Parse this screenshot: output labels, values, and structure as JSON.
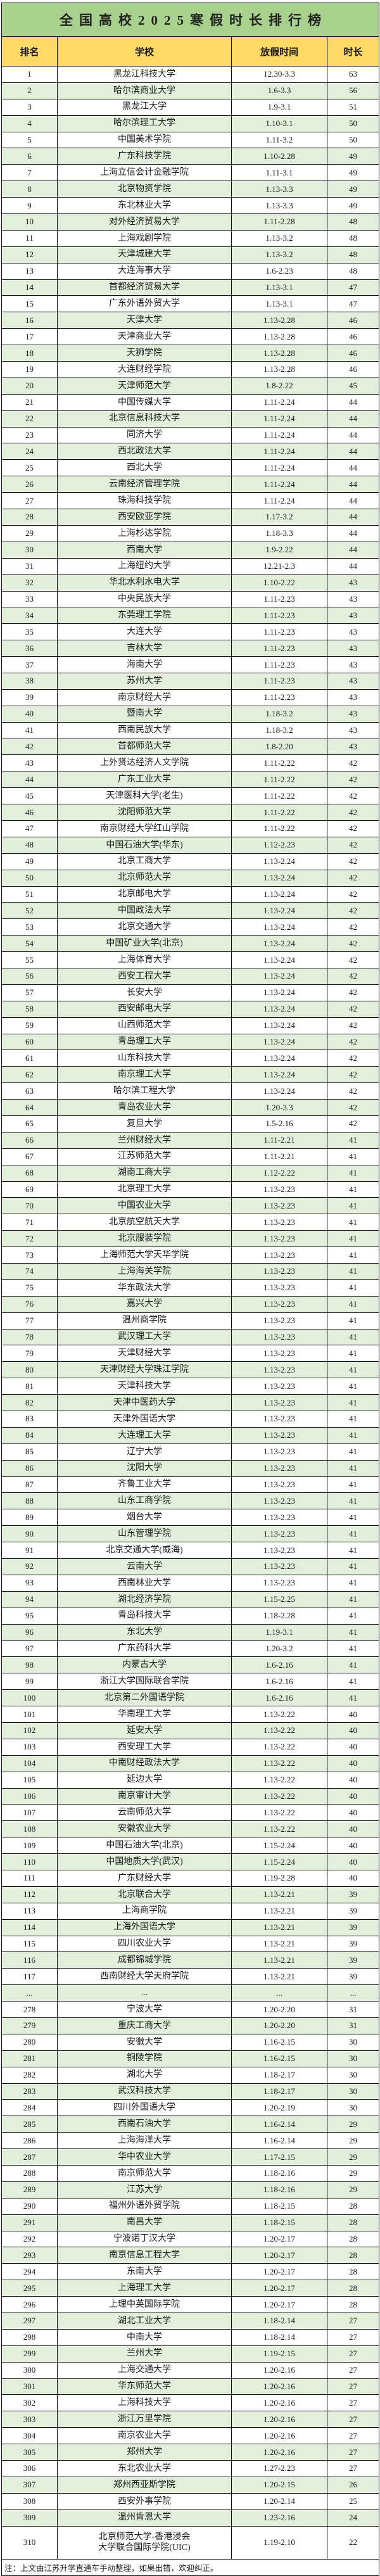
{
  "title": "全国高校2025寒假时长排行榜",
  "columns": [
    "排名",
    "学校",
    "放假时间",
    "时长"
  ],
  "footer_note": "注：上文由江苏升学直通车手动整理，如果出错，欢迎纠正。",
  "colors": {
    "title_bg": "#a9d18e",
    "header_bg": "#ffd966",
    "alt_row_bg": "#e2efda",
    "border": "#101010"
  },
  "rows": [
    [
      "1",
      "黑龙江科技大学",
      "12.30-3.3",
      "63"
    ],
    [
      "2",
      "哈尔滨商业大学",
      "1.6-3.3",
      "56"
    ],
    [
      "3",
      "黑龙江大学",
      "1.9-3.1",
      "51"
    ],
    [
      "4",
      "哈尔滨理工大学",
      "1.10-3.1",
      "50"
    ],
    [
      "5",
      "中国美术学院",
      "1.11-3.2",
      "50"
    ],
    [
      "6",
      "广东科技学院",
      "1.10-2.28",
      "49"
    ],
    [
      "7",
      "上海立信会计金融学院",
      "1.11-3.1",
      "49"
    ],
    [
      "8",
      "北京物资学院",
      "1.13-3.3",
      "49"
    ],
    [
      "9",
      "东北林业大学",
      "1.13-3.3",
      "49"
    ],
    [
      "10",
      "对外经济贸易大学",
      "1.11-2.28",
      "48"
    ],
    [
      "11",
      "上海戏剧学院",
      "1.13-3.2",
      "48"
    ],
    [
      "12",
      "天津城建大学",
      "1.13-3.2",
      "48"
    ],
    [
      "13",
      "大连海事大学",
      "1.6-2.23",
      "48"
    ],
    [
      "14",
      "首都经济贸易大学",
      "1.13-3.1",
      "47"
    ],
    [
      "15",
      "广东外语外贸大学",
      "1.13-3.1",
      "47"
    ],
    [
      "16",
      "天津大学",
      "1.13-2.28",
      "46"
    ],
    [
      "17",
      "天津商业大学",
      "1.13-2.28",
      "46"
    ],
    [
      "18",
      "天狮学院",
      "1.13-2.28",
      "46"
    ],
    [
      "19",
      "大连财经学院",
      "1.13-2.28",
      "46"
    ],
    [
      "20",
      "天津师范大学",
      "1.8-2.22",
      "45"
    ],
    [
      "21",
      "中国传媒大学",
      "1.11-2.24",
      "44"
    ],
    [
      "22",
      "北京信息科技大学",
      "1.11-2.24",
      "44"
    ],
    [
      "23",
      "同济大学",
      "1.11-2.24",
      "44"
    ],
    [
      "24",
      "西北政法大学",
      "1.11-2.24",
      "44"
    ],
    [
      "25",
      "西北大学",
      "1.11-2.24",
      "44"
    ],
    [
      "26",
      "云南经济管理学院",
      "1.11-2.24",
      "44"
    ],
    [
      "27",
      "珠海科技学院",
      "1.11-2.24",
      "44"
    ],
    [
      "28",
      "西安欧亚学院",
      "1.17-3.2",
      "44"
    ],
    [
      "29",
      "上海杉达学院",
      "1.18-3.3",
      "44"
    ],
    [
      "30",
      "西南大学",
      "1.9-2.22",
      "44"
    ],
    [
      "31",
      "上海纽约大学",
      "12.21-2.3",
      "44"
    ],
    [
      "32",
      "华北水利水电大学",
      "1.10-2.22",
      "43"
    ],
    [
      "33",
      "中央民族大学",
      "1.11-2.23",
      "43"
    ],
    [
      "34",
      "东莞理工学院",
      "1.11-2.23",
      "43"
    ],
    [
      "35",
      "大连大学",
      "1.11-2.23",
      "43"
    ],
    [
      "36",
      "吉林大学",
      "1.11-2.23",
      "43"
    ],
    [
      "37",
      "海南大学",
      "1.11-2.23",
      "43"
    ],
    [
      "38",
      "苏州大学",
      "1.11-2.23",
      "43"
    ],
    [
      "39",
      "南京财经大学",
      "1.11-2.23",
      "43"
    ],
    [
      "40",
      "暨南大学",
      "1.18-3.2",
      "43"
    ],
    [
      "41",
      "西南民族大学",
      "1.18-3.2",
      "43"
    ],
    [
      "42",
      "首都师范大学",
      "1.8-2.20",
      "43"
    ],
    [
      "43",
      "上外贤达经济人文学院",
      "1.11-2.22",
      "42"
    ],
    [
      "44",
      "广东工业大学",
      "1.11-2.22",
      "42"
    ],
    [
      "45",
      "天津医科大学(老生)",
      "1.11-2.22",
      "42"
    ],
    [
      "46",
      "沈阳师范大学",
      "1.11-2.22",
      "42"
    ],
    [
      "47",
      "南京财经大学红山学院",
      "1.11-2.22",
      "42"
    ],
    [
      "48",
      "中国石油大学(华东)",
      "1.12-2.23",
      "42"
    ],
    [
      "49",
      "北京工商大学",
      "1.13-2.24",
      "42"
    ],
    [
      "50",
      "北京师范大学",
      "1.13-2.24",
      "42"
    ],
    [
      "51",
      "北京邮电大学",
      "1.13-2.24",
      "42"
    ],
    [
      "52",
      "中国政法大学",
      "1.13-2.24",
      "42"
    ],
    [
      "53",
      "北京交通大学",
      "1.13-2.24",
      "42"
    ],
    [
      "54",
      "中国矿业大学(北京)",
      "1.13-2.24",
      "42"
    ],
    [
      "55",
      "上海体育大学",
      "1.13-2.24",
      "42"
    ],
    [
      "56",
      "西安工程大学",
      "1.13-2.24",
      "42"
    ],
    [
      "57",
      "长安大学",
      "1.13-2.24",
      "42"
    ],
    [
      "58",
      "西安邮电大学",
      "1.13-2.24",
      "42"
    ],
    [
      "59",
      "山西师范大学",
      "1.13-2.24",
      "42"
    ],
    [
      "60",
      "青岛理工大学",
      "1.13-2.24",
      "42"
    ],
    [
      "61",
      "山东科技大学",
      "1.13-2.24",
      "42"
    ],
    [
      "62",
      "南京理工大学",
      "1.13-2.24",
      "42"
    ],
    [
      "63",
      "哈尔滨工程大学",
      "1.13-2.24",
      "42"
    ],
    [
      "64",
      "青岛农业大学",
      "1.20-3.3",
      "42"
    ],
    [
      "65",
      "复旦大学",
      "1.5-2.16",
      "42"
    ],
    [
      "66",
      "兰州财经大学",
      "1.11-2.21",
      "41"
    ],
    [
      "67",
      "江苏师范大学",
      "1.11-2.21",
      "41"
    ],
    [
      "68",
      "湖南工商大学",
      "1.12-2.22",
      "41"
    ],
    [
      "69",
      "北京理工大学",
      "1.13-2.23",
      "41"
    ],
    [
      "70",
      "中国农业大学",
      "1.13-2.23",
      "41"
    ],
    [
      "71",
      "北京航空航天大学",
      "1.13-2.23",
      "41"
    ],
    [
      "72",
      "北京服装学院",
      "1.13-2.23",
      "41"
    ],
    [
      "73",
      "上海师范大学天华学院",
      "1.13-2.23",
      "41"
    ],
    [
      "74",
      "上海海关学院",
      "1.13-2.23",
      "41"
    ],
    [
      "75",
      "华东政法大学",
      "1.13-2.23",
      "41"
    ],
    [
      "76",
      "嘉兴大学",
      "1.13-2.23",
      "41"
    ],
    [
      "77",
      "温州商学院",
      "1.13-2.23",
      "41"
    ],
    [
      "78",
      "武汉理工大学",
      "1.13-2.23",
      "41"
    ],
    [
      "79",
      "天津财经大学",
      "1.13-2.23",
      "41"
    ],
    [
      "80",
      "天津财经大学珠江学院",
      "1.13-2.23",
      "41"
    ],
    [
      "81",
      "天津科技大学",
      "1.13-2.23",
      "41"
    ],
    [
      "82",
      "天津中医药大学",
      "1.13-2.23",
      "41"
    ],
    [
      "83",
      "天津外国语大学",
      "1.13-2.23",
      "41"
    ],
    [
      "84",
      "大连理工大学",
      "1.13-2.23",
      "41"
    ],
    [
      "85",
      "辽宁大学",
      "1.13-2.23",
      "41"
    ],
    [
      "86",
      "沈阳大学",
      "1.13-2.23",
      "41"
    ],
    [
      "87",
      "齐鲁工业大学",
      "1.13-2.23",
      "41"
    ],
    [
      "88",
      "山东工商学院",
      "1.13-2.23",
      "41"
    ],
    [
      "89",
      "烟台大学",
      "1.13-2.23",
      "41"
    ],
    [
      "90",
      "山东管理学院",
      "1.13-2.23",
      "41"
    ],
    [
      "91",
      "北京交通大学(威海)",
      "1.13-2.23",
      "41"
    ],
    [
      "92",
      "云南大学",
      "1.13-2.23",
      "41"
    ],
    [
      "93",
      "西南林业大学",
      "1.13-2.23",
      "41"
    ],
    [
      "94",
      "湖北经济学院",
      "1.15-2.25",
      "41"
    ],
    [
      "95",
      "青岛科技大学",
      "1.18-2.28",
      "41"
    ],
    [
      "96",
      "东北大学",
      "1.19-3.1",
      "41"
    ],
    [
      "97",
      "广东药科大学",
      "1.20-3.2",
      "41"
    ],
    [
      "98",
      "内蒙古大学",
      "1.6-2.16",
      "41"
    ],
    [
      "99",
      "浙江大学国际联合学院",
      "1.6-2.16",
      "41"
    ],
    [
      "100",
      "北京第二外国语学院",
      "1.6-2.16",
      "41"
    ],
    [
      "101",
      "华南理工大学",
      "1.13-2.22",
      "40"
    ],
    [
      "102",
      "延安大学",
      "1.13-2.22",
      "40"
    ],
    [
      "103",
      "西安理工大学",
      "1.13-2.22",
      "40"
    ],
    [
      "104",
      "中南财经政法大学",
      "1.13-2.22",
      "40"
    ],
    [
      "105",
      "延边大学",
      "1.13-2.22",
      "40"
    ],
    [
      "106",
      "南京审计大学",
      "1.13-2.22",
      "40"
    ],
    [
      "107",
      "云南师范大学",
      "1.13-2.22",
      "40"
    ],
    [
      "108",
      "安徽农业大学",
      "1.13-2.22",
      "40"
    ],
    [
      "109",
      "中国石油大学(北京)",
      "1.15-2.24",
      "40"
    ],
    [
      "110",
      "中国地质大学(武汉)",
      "1.15-2.24",
      "40"
    ],
    [
      "111",
      "广东财经大学",
      "1.19-2.28",
      "40"
    ],
    [
      "112",
      "北京联合大学",
      "1.13-2.21",
      "39"
    ],
    [
      "113",
      "上海商学院",
      "1.13-2.21",
      "39"
    ],
    [
      "114",
      "上海外国语大学",
      "1.13-2.21",
      "39"
    ],
    [
      "115",
      "四川农业大学",
      "1.13-2.21",
      "39"
    ],
    [
      "116",
      "成都锦城学院",
      "1.13-2.21",
      "39"
    ],
    [
      "117",
      "西南财经大学天府学院",
      "1.13-2.21",
      "39"
    ],
    [
      "...",
      "...",
      "...",
      "..."
    ],
    [
      "278",
      "宁波大学",
      "1.20-2.20",
      "31"
    ],
    [
      "279",
      "重庆工商大学",
      "1.20-2.20",
      "31"
    ],
    [
      "280",
      "安徽大学",
      "1.16-2.15",
      "30"
    ],
    [
      "281",
      "铜陵学院",
      "1.16-2.15",
      "30"
    ],
    [
      "282",
      "湖北大学",
      "1.18-2.17",
      "30"
    ],
    [
      "283",
      "武汉科技大学",
      "1.18-2.17",
      "30"
    ],
    [
      "284",
      "四川外国语大学",
      "1.20-2.19",
      "30"
    ],
    [
      "285",
      "西南石油大学",
      "1.16-2.14",
      "29"
    ],
    [
      "286",
      "上海海洋大学",
      "1.16-2.14",
      "29"
    ],
    [
      "287",
      "华中农业大学",
      "1.17-2.15",
      "29"
    ],
    [
      "288",
      "南京师范大学",
      "1.18-2.16",
      "29"
    ],
    [
      "289",
      "江苏大学",
      "1.18-2.16",
      "29"
    ],
    [
      "290",
      "福州外语外贸学院",
      "1.18-2.15",
      "28"
    ],
    [
      "291",
      "南昌大学",
      "1.18-2.15",
      "28"
    ],
    [
      "292",
      "宁波诺丁汉大学",
      "1.20-2.17",
      "28"
    ],
    [
      "293",
      "南京信息工程大学",
      "1.20-2.17",
      "28"
    ],
    [
      "294",
      "东南大学",
      "1.20-2.17",
      "28"
    ],
    [
      "295",
      "上海理工大学",
      "1.20-2.17",
      "28"
    ],
    [
      "296",
      "上理中英国际学院",
      "1.20-2.17",
      "28"
    ],
    [
      "297",
      "湖北工业大学",
      "1.18-2.14",
      "27"
    ],
    [
      "298",
      "中南大学",
      "1.18-2.14",
      "27"
    ],
    [
      "299",
      "兰州大学",
      "1.19-2.15",
      "27"
    ],
    [
      "300",
      "上海交通大学",
      "1.20-2.16",
      "27"
    ],
    [
      "301",
      "华东师范大学",
      "1.20-2.16",
      "27"
    ],
    [
      "302",
      "上海科技大学",
      "1.20-2.16",
      "27"
    ],
    [
      "303",
      "浙江万里学院",
      "1.20-2.16",
      "27"
    ],
    [
      "304",
      "南京农业大学",
      "1.20-2.16",
      "27"
    ],
    [
      "305",
      "郑州大学",
      "1.20-2.16",
      "27"
    ],
    [
      "306",
      "东北农业大学",
      "1.27-2.23",
      "27"
    ],
    [
      "307",
      "郑州西亚斯学院",
      "1.20-2.15",
      "26"
    ],
    [
      "308",
      "西安外事学院",
      "1.20-2.14",
      "25"
    ],
    [
      "309",
      "温州肯恩大学",
      "1.23-2.16",
      "24"
    ],
    [
      "310",
      "北京师范大学-香港浸会\n大学联合国际学院(UIC)",
      "1.19-2.10",
      "22"
    ]
  ]
}
